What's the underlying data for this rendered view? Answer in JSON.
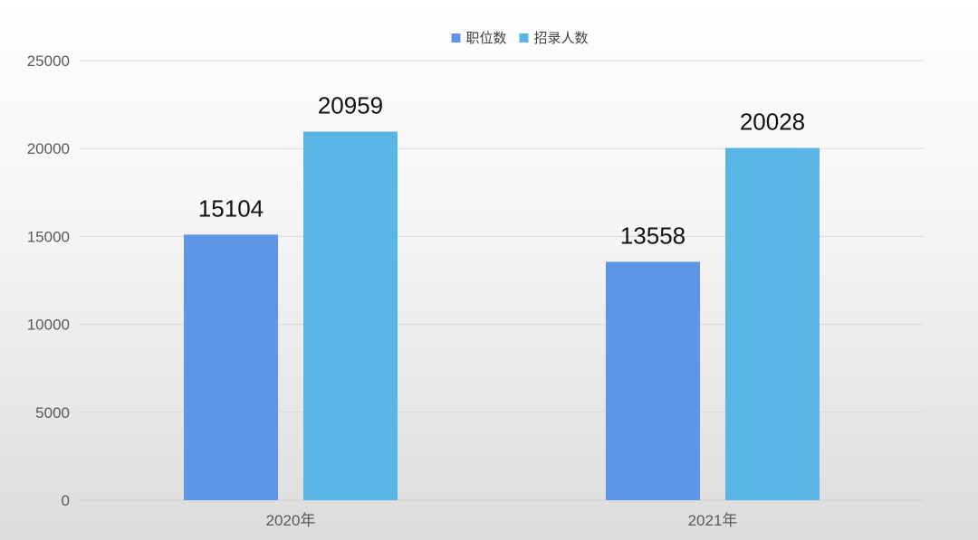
{
  "chart_data": {
    "type": "bar",
    "categories": [
      "2020年",
      "2021年"
    ],
    "series": [
      {
        "name": "职位数",
        "values": [
          15104,
          13558
        ],
        "color": "#5e95e6"
      },
      {
        "name": "招录人数",
        "values": [
          20959,
          20028
        ],
        "color": "#58b5e4"
      }
    ],
    "yticks": [
      0,
      5000,
      10000,
      15000,
      20000,
      25000
    ],
    "ylim": [
      0,
      25000
    ],
    "grid": true,
    "legend_position": "top-center",
    "data_labels": true
  }
}
